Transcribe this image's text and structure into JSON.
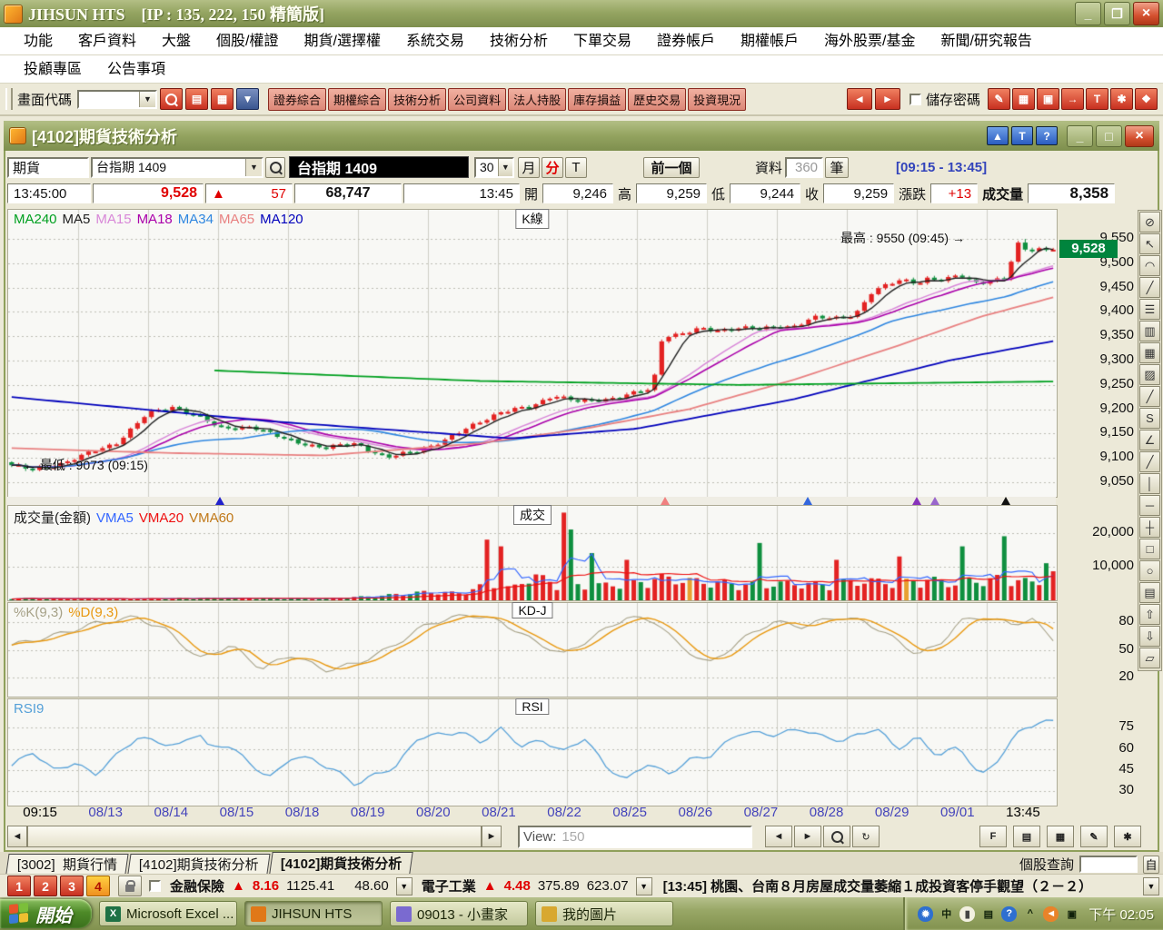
{
  "titlebar": {
    "app_title": "JIHSUN HTS    [IP : 135, 222, 150 精簡版]"
  },
  "menu": {
    "row1": [
      "功能",
      "客戶資料",
      "大盤",
      "個股/權證",
      "期貨/選擇權",
      "系統交易",
      "技術分析",
      "下單交易",
      "證券帳戶",
      "期權帳戶",
      "海外股票/基金",
      "新聞/研究報告"
    ],
    "row2": [
      "投顧專區",
      "公告事項"
    ]
  },
  "toolbar": {
    "screen_code_label": "畫面代碼",
    "icon_buttons": [
      {
        "name": "search-icon",
        "glyph": "mag",
        "style": "red"
      },
      {
        "name": "folder-icon",
        "glyph": "▤",
        "style": "red"
      },
      {
        "name": "keypad-icon",
        "glyph": "▦",
        "style": "red"
      },
      {
        "name": "dropdown-icon",
        "glyph": "▼",
        "style": "blue"
      }
    ],
    "quick_buttons": [
      "證券綜合",
      "期權綜合",
      "技術分析",
      "公司資料",
      "法人持股",
      "庫存損益",
      "歷史交易",
      "投資現況"
    ],
    "nav_back_glyph": "◄",
    "nav_fwd_glyph": "►",
    "save_password_label": "儲存密碼",
    "right_icons": [
      {
        "name": "pen-icon",
        "glyph": "✎"
      },
      {
        "name": "image-icon",
        "glyph": "▦"
      },
      {
        "name": "monitor-icon",
        "glyph": "▣"
      },
      {
        "name": "exit-icon",
        "glyph": "→"
      },
      {
        "name": "text-tool-icon",
        "glyph": "T"
      },
      {
        "name": "tools-icon",
        "glyph": "✱"
      },
      {
        "name": "hand-icon",
        "glyph": "❖"
      }
    ]
  },
  "chart_window": {
    "title": "[4102]期貨技術分析",
    "header_buttons": [
      {
        "name": "collapse-button",
        "glyph": "▲"
      },
      {
        "name": "text-mode-button",
        "glyph": "T"
      },
      {
        "name": "help-button",
        "glyph": "?"
      }
    ],
    "market": "期貨",
    "symbol": "台指期 1409",
    "symbol_display": "台指期 1409",
    "interval": "30",
    "month_button": "月",
    "minute_button": "分",
    "tick_button": "T",
    "prev_button": "前一個",
    "data_label": "資料",
    "data_count": "360",
    "data_unit": "筆",
    "session_range": "[09:15 - 13:45]",
    "quote": {
      "time": "13:45:00",
      "last": "9,528",
      "up_arrow": "▲",
      "change": "57",
      "cum_volume": "68,747",
      "bar_time": "13:45",
      "open_label": "開",
      "open": "9,246",
      "high_label": "高",
      "high": "9,259",
      "low_label": "低",
      "low": "9,244",
      "close_label": "收",
      "close": "9,259",
      "change_label": "漲跌",
      "net_change": "+13",
      "volume_label": "成交量",
      "volume": "8,358"
    }
  },
  "chart": {
    "kline_tag": "K線",
    "volume_tag": "成交",
    "kd_tag": "KD-J",
    "rsi_tag": "RSI",
    "high_note": "最高 : 9550 (09:45) →",
    "low_note": "← 最低 : 9073 (09:15)",
    "price_badge": "9,528",
    "price_badge_color": "#00843D",
    "price_axis": [
      "9,550",
      "9,500",
      "9,450",
      "9,400",
      "9,350",
      "9,300",
      "9,250",
      "9,200",
      "9,150",
      "9,100",
      "9,050"
    ],
    "volume_axis": [
      "20,000",
      "10,000"
    ],
    "kd_axis": [
      "80",
      "50",
      "20"
    ],
    "rsi_axis": [
      "75",
      "60",
      "45",
      "30"
    ],
    "x_labels": [
      "09:15",
      "08/13",
      "08/14",
      "08/15",
      "08/18",
      "08/19",
      "08/20",
      "08/21",
      "08/22",
      "08/25",
      "08/26",
      "08/27",
      "08/28",
      "08/29",
      "09/01",
      "13:45"
    ],
    "ma_legend": [
      {
        "label": "MA240",
        "color": "#00A020"
      },
      {
        "label": "MA5",
        "color": "#202020"
      },
      {
        "label": "MA15",
        "color": "#D887D8"
      },
      {
        "label": "MA18",
        "color": "#AA00AA"
      },
      {
        "label": "MA34",
        "color": "#2E86E0"
      },
      {
        "label": "MA65",
        "color": "#E88080"
      },
      {
        "label": "MA120",
        "color": "#0000BB"
      }
    ],
    "volume_legend": [
      {
        "label": "成交量(金額)",
        "color": "#202020"
      },
      {
        "label": "VMA5",
        "color": "#3366FF"
      },
      {
        "label": "VMA20",
        "color": "#EE1111"
      },
      {
        "label": "VMA60",
        "color": "#C07818"
      }
    ],
    "kd_legend": [
      {
        "label": "%K(9,3)",
        "color": "#A6A187"
      },
      {
        "label": "%D(9,3)",
        "color": "#E8980F"
      }
    ],
    "rsi_legend": [
      {
        "label": "RSI9",
        "color": "#55A0D8"
      }
    ]
  },
  "chart_data": {
    "type": "candlestick",
    "bars_visible": 150,
    "session_high": 9550,
    "session_high_time": "09:45",
    "session_low": 9073,
    "session_low_time": "09:15",
    "last_price": 9528,
    "price_range": [
      9020,
      9610
    ],
    "close_anchors": [
      [
        0,
        9085
      ],
      [
        0.02,
        9075
      ],
      [
        0.05,
        9090
      ],
      [
        0.1,
        9130
      ],
      [
        0.13,
        9190
      ],
      [
        0.155,
        9205
      ],
      [
        0.18,
        9185
      ],
      [
        0.2,
        9160
      ],
      [
        0.23,
        9165
      ],
      [
        0.26,
        9140
      ],
      [
        0.3,
        9120
      ],
      [
        0.33,
        9130
      ],
      [
        0.36,
        9100
      ],
      [
        0.39,
        9115
      ],
      [
        0.42,
        9140
      ],
      [
        0.45,
        9175
      ],
      [
        0.47,
        9195
      ],
      [
        0.5,
        9205
      ],
      [
        0.52,
        9230
      ],
      [
        0.545,
        9215
      ],
      [
        0.57,
        9220
      ],
      [
        0.6,
        9235
      ],
      [
        0.615,
        9240
      ],
      [
        0.625,
        9350
      ],
      [
        0.64,
        9355
      ],
      [
        0.66,
        9365
      ],
      [
        0.68,
        9360
      ],
      [
        0.7,
        9370
      ],
      [
        0.72,
        9365
      ],
      [
        0.75,
        9370
      ],
      [
        0.77,
        9390
      ],
      [
        0.79,
        9385
      ],
      [
        0.81,
        9395
      ],
      [
        0.825,
        9440
      ],
      [
        0.84,
        9455
      ],
      [
        0.855,
        9465
      ],
      [
        0.87,
        9460
      ],
      [
        0.88,
        9470
      ],
      [
        0.895,
        9465
      ],
      [
        0.91,
        9475
      ],
      [
        0.925,
        9460
      ],
      [
        0.94,
        9465
      ],
      [
        0.955,
        9470
      ],
      [
        0.965,
        9540
      ],
      [
        0.975,
        9525
      ],
      [
        0.985,
        9530
      ],
      [
        1,
        9528
      ]
    ],
    "ma_overlays": {
      "MA65": [
        [
          0,
          9120
        ],
        [
          0.15,
          9110
        ],
        [
          0.3,
          9105
        ],
        [
          0.45,
          9130
        ],
        [
          0.55,
          9160
        ],
        [
          0.65,
          9200
        ],
        [
          0.75,
          9260
        ],
        [
          0.85,
          9330
        ],
        [
          0.93,
          9390
        ],
        [
          1,
          9430
        ]
      ],
      "MA120": [
        [
          0,
          9225
        ],
        [
          0.25,
          9175
        ],
        [
          0.48,
          9140
        ],
        [
          0.6,
          9160
        ],
        [
          0.75,
          9220
        ],
        [
          0.9,
          9300
        ],
        [
          1,
          9340
        ]
      ],
      "MA240": [
        [
          0.19,
          9280
        ],
        [
          0.45,
          9258
        ],
        [
          0.7,
          9250
        ],
        [
          1,
          9257
        ]
      ]
    },
    "volume_range": [
      0,
      28000
    ],
    "volume_env_anchors": [
      [
        0,
        700
      ],
      [
        0.1,
        500
      ],
      [
        0.2,
        800
      ],
      [
        0.3,
        600
      ],
      [
        0.35,
        1500
      ],
      [
        0.4,
        3000
      ],
      [
        0.43,
        2500
      ],
      [
        0.46,
        6000
      ],
      [
        0.48,
        4000
      ],
      [
        0.5,
        9000
      ],
      [
        0.52,
        6000
      ],
      [
        0.55,
        5000
      ],
      [
        0.6,
        6000
      ],
      [
        0.62,
        8000
      ],
      [
        0.65,
        7000
      ],
      [
        0.68,
        6000
      ],
      [
        0.72,
        5500
      ],
      [
        0.75,
        6000
      ],
      [
        0.78,
        5500
      ],
      [
        0.82,
        7000
      ],
      [
        0.85,
        6000
      ],
      [
        0.88,
        7500
      ],
      [
        0.9,
        6000
      ],
      [
        0.93,
        7000
      ],
      [
        0.96,
        8000
      ],
      [
        0.98,
        6000
      ],
      [
        1,
        9000
      ]
    ],
    "volume_spikes": [
      [
        0.455,
        18000
      ],
      [
        0.467,
        16000
      ],
      [
        0.527,
        26000
      ],
      [
        0.537,
        21000
      ],
      [
        0.555,
        14000
      ],
      [
        0.59,
        12000
      ],
      [
        0.72,
        17000
      ],
      [
        0.79,
        12000
      ],
      [
        0.85,
        13000
      ],
      [
        0.91,
        16000
      ],
      [
        0.955,
        19000
      ],
      [
        0.99,
        11000
      ]
    ],
    "kd_range": [
      0,
      100
    ],
    "kd_anchors": [
      [
        0,
        55
      ],
      [
        0.04,
        65
      ],
      [
        0.08,
        78
      ],
      [
        0.12,
        85
      ],
      [
        0.15,
        70
      ],
      [
        0.18,
        40
      ],
      [
        0.21,
        55
      ],
      [
        0.24,
        30
      ],
      [
        0.27,
        45
      ],
      [
        0.3,
        28
      ],
      [
        0.33,
        35
      ],
      [
        0.36,
        50
      ],
      [
        0.4,
        78
      ],
      [
        0.44,
        88
      ],
      [
        0.47,
        80
      ],
      [
        0.5,
        60
      ],
      [
        0.53,
        45
      ],
      [
        0.56,
        65
      ],
      [
        0.59,
        85
      ],
      [
        0.62,
        80
      ],
      [
        0.64,
        55
      ],
      [
        0.67,
        35
      ],
      [
        0.7,
        60
      ],
      [
        0.73,
        80
      ],
      [
        0.76,
        75
      ],
      [
        0.79,
        85
      ],
      [
        0.82,
        80
      ],
      [
        0.85,
        60
      ],
      [
        0.87,
        45
      ],
      [
        0.89,
        55
      ],
      [
        0.91,
        80
      ],
      [
        0.93,
        85
      ],
      [
        0.96,
        78
      ],
      [
        0.98,
        82
      ],
      [
        1,
        62
      ]
    ],
    "rsi_range": [
      20,
      95
    ],
    "rsi_anchors": [
      [
        0,
        48
      ],
      [
        0.02,
        58
      ],
      [
        0.04,
        45
      ],
      [
        0.06,
        50
      ],
      [
        0.08,
        42
      ],
      [
        0.1,
        55
      ],
      [
        0.12,
        68
      ],
      [
        0.14,
        65
      ],
      [
        0.16,
        62
      ],
      [
        0.18,
        72
      ],
      [
        0.19,
        60
      ],
      [
        0.21,
        63
      ],
      [
        0.23,
        48
      ],
      [
        0.25,
        40
      ],
      [
        0.27,
        55
      ],
      [
        0.29,
        52
      ],
      [
        0.31,
        45
      ],
      [
        0.33,
        35
      ],
      [
        0.35,
        42
      ],
      [
        0.37,
        48
      ],
      [
        0.39,
        68
      ],
      [
        0.41,
        70
      ],
      [
        0.43,
        72
      ],
      [
        0.45,
        65
      ],
      [
        0.47,
        74
      ],
      [
        0.49,
        62
      ],
      [
        0.51,
        66
      ],
      [
        0.53,
        58
      ],
      [
        0.55,
        68
      ],
      [
        0.57,
        48
      ],
      [
        0.59,
        38
      ],
      [
        0.61,
        50
      ],
      [
        0.63,
        42
      ],
      [
        0.65,
        52
      ],
      [
        0.67,
        55
      ],
      [
        0.7,
        72
      ],
      [
        0.73,
        70
      ],
      [
        0.76,
        74
      ],
      [
        0.78,
        68
      ],
      [
        0.8,
        66
      ],
      [
        0.83,
        75
      ],
      [
        0.85,
        60
      ],
      [
        0.87,
        68
      ],
      [
        0.89,
        55
      ],
      [
        0.91,
        62
      ],
      [
        0.93,
        40
      ],
      [
        0.95,
        55
      ],
      [
        0.97,
        75
      ],
      [
        1,
        80
      ]
    ],
    "markers": [
      {
        "x": 0.203,
        "color": "#2222CC"
      },
      {
        "x": 0.627,
        "color": "#F08080"
      },
      {
        "x": 0.763,
        "color": "#3366DD"
      },
      {
        "x": 0.867,
        "color": "#8833BB"
      },
      {
        "x": 0.885,
        "color": "#9966CC"
      },
      {
        "x": 0.952,
        "color": "#111111"
      }
    ],
    "up_color": "#E32222",
    "down_color": "#0F8F3F"
  },
  "toolstrip": [
    {
      "name": "no-draw-icon",
      "glyph": "⊘"
    },
    {
      "name": "pointer-icon",
      "glyph": "↖"
    },
    {
      "name": "arc-icon",
      "glyph": "◠"
    },
    {
      "name": "fan-lines-icon",
      "glyph": "╱"
    },
    {
      "name": "horizontal-lines-icon",
      "glyph": "☰"
    },
    {
      "name": "vertical-lines-icon",
      "glyph": "▥"
    },
    {
      "name": "grid-icon",
      "glyph": "▦"
    },
    {
      "name": "hatch-icon",
      "glyph": "▨"
    },
    {
      "name": "trend-line-icon",
      "glyph": "╱"
    },
    {
      "name": "s-curve-icon",
      "glyph": "S"
    },
    {
      "name": "angle-icon",
      "glyph": "∠"
    },
    {
      "name": "ray-icon",
      "glyph": "╱"
    },
    {
      "name": "vertical-line-icon",
      "glyph": "│"
    },
    {
      "name": "horizontal-line-icon",
      "glyph": "─"
    },
    {
      "name": "cross-line-icon",
      "glyph": "┼"
    },
    {
      "name": "rectangle-icon",
      "glyph": "□"
    },
    {
      "name": "ellipse-icon",
      "glyph": "○"
    },
    {
      "name": "bars-icon",
      "glyph": "▤"
    },
    {
      "name": "arrow-up-icon",
      "glyph": "⇧"
    },
    {
      "name": "arrow-down-icon",
      "glyph": "⇩"
    },
    {
      "name": "eraser-icon",
      "glyph": "▱"
    }
  ],
  "bottom_bar": {
    "view_label": "View:",
    "view_value": "150",
    "nav_buttons": [
      {
        "name": "page-left-icon",
        "glyph": "◄"
      },
      {
        "name": "page-right-icon",
        "glyph": "►"
      },
      {
        "name": "zoom-icon",
        "glyph": "mag"
      },
      {
        "name": "refresh-icon",
        "glyph": "↻"
      }
    ],
    "tool_buttons": [
      {
        "name": "indicator-settings-icon",
        "glyph": "F"
      },
      {
        "name": "copy-chart-icon",
        "glyph": "▤"
      },
      {
        "name": "data-table-icon",
        "glyph": "▦"
      },
      {
        "name": "draw-icon",
        "glyph": "✎"
      },
      {
        "name": "settings-icon",
        "glyph": "✱"
      }
    ]
  },
  "tabs": {
    "items": [
      "[3002]  期貨行情",
      "[4102]期貨技術分析",
      "[4102]期貨技術分析"
    ],
    "active_index": 2,
    "stock_query_label": "個股查詢",
    "stock_query_button": "自"
  },
  "status_bar": {
    "pages": [
      "1",
      "2",
      "3",
      "4"
    ],
    "active_page": "4",
    "ticker1": {
      "name": "金融保險",
      "arrow": "▲",
      "change": "8.16",
      "value": "1125.41",
      "value2": "48.60"
    },
    "ticker2": {
      "name": "電子工業",
      "arrow": "▲",
      "change": "4.48",
      "value": "375.89",
      "value2": "623.07"
    },
    "news": "[13:45] 桃園、台南８月房屋成交量萎縮１成投資客停手觀望（２－２）"
  },
  "taskbar": {
    "start_label": "開始",
    "tasks": [
      {
        "label": "Microsoft Excel ...",
        "icon": "excel-icon",
        "color": "#1E7145",
        "active": false
      },
      {
        "label": "JIHSUN HTS",
        "icon": "jihsun-icon",
        "color": "#E07818",
        "active": true
      },
      {
        "label": "09013 - 小畫家",
        "icon": "paint-icon",
        "color": "#7A6AD0",
        "active": false
      },
      {
        "label": "我的圖片",
        "icon": "pictures-icon",
        "color": "#D8A830",
        "active": false
      }
    ],
    "tray_icons": [
      {
        "name": "updates-icon",
        "glyph": "✹",
        "bg": "#2E6FD0",
        "fg": "#FFFFFF"
      },
      {
        "name": "ime-chinese-icon",
        "glyph": "中",
        "bg": "transparent",
        "fg": "#10210A"
      },
      {
        "name": "ime-mode-icon",
        "glyph": "▮",
        "bg": "#F2F0E0",
        "fg": "#444444"
      },
      {
        "name": "scheduler-icon",
        "glyph": "▤",
        "bg": "transparent",
        "fg": "#10210A"
      },
      {
        "name": "help-icon",
        "glyph": "?",
        "bg": "#2E6FD0",
        "fg": "#FFFFFF"
      },
      {
        "name": "hidden-icons-chevron",
        "glyph": "^",
        "bg": "transparent",
        "fg": "#10210A"
      },
      {
        "name": "safely-remove-icon",
        "glyph": "◄",
        "bg": "#E8832A",
        "fg": "#FFFFFF"
      },
      {
        "name": "network-icon",
        "glyph": "▣",
        "bg": "transparent",
        "fg": "#10210A"
      }
    ],
    "clock": "下午 02:05"
  }
}
